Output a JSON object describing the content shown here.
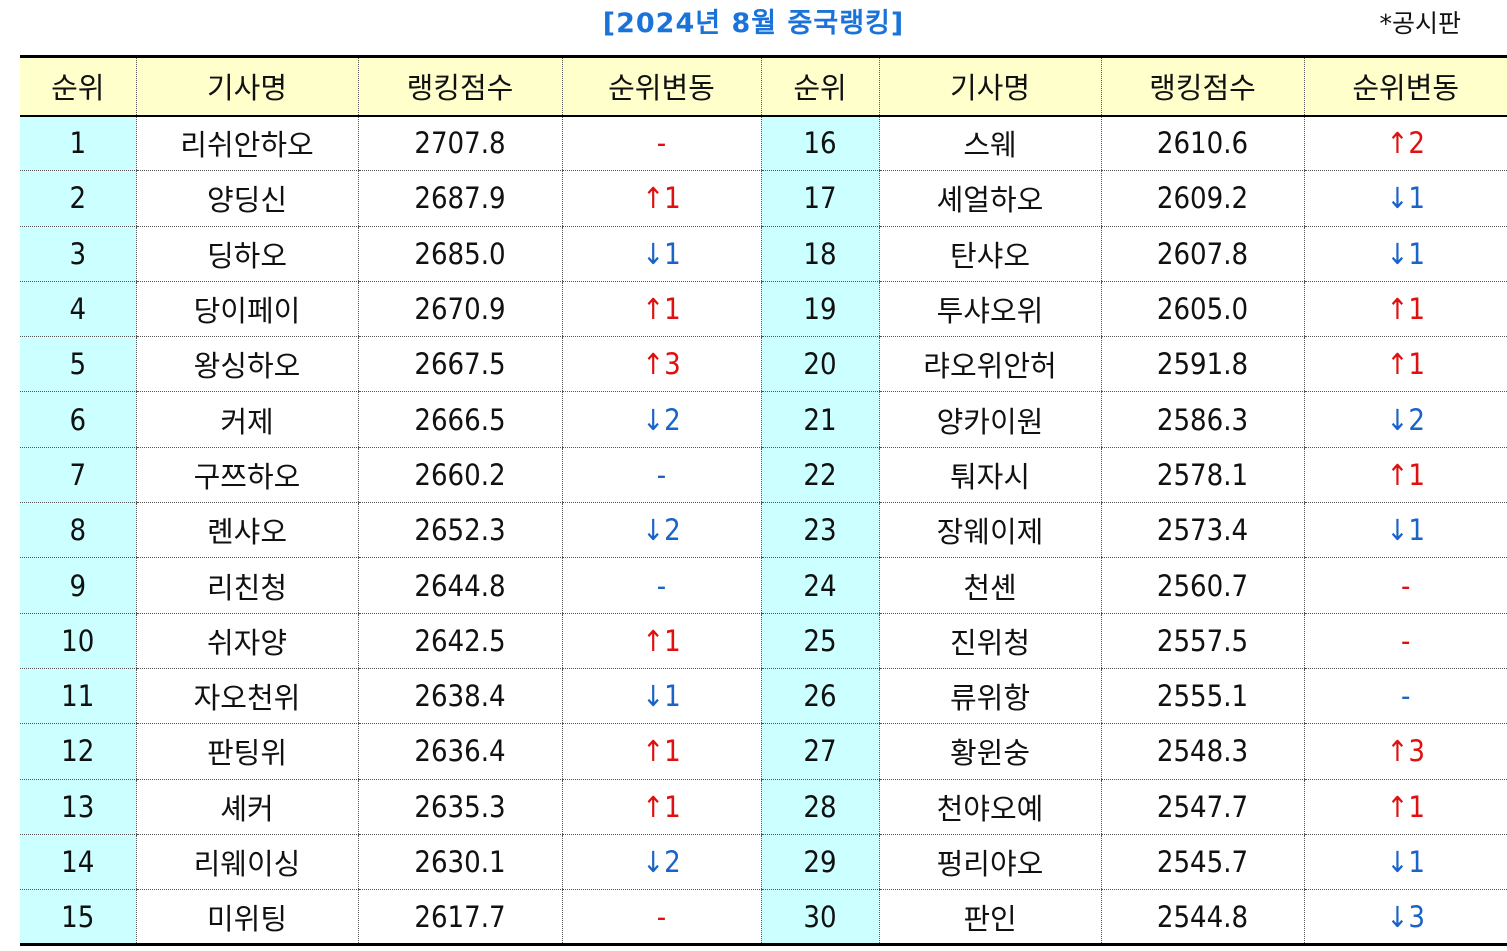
{
  "title": "[2024년 8월 중국랭킹]",
  "source": "*공시판",
  "headers": [
    "순위",
    "기사명",
    "랭킹점수",
    "순위변동",
    "순위",
    "기사명",
    "랭킹점수",
    "순위변동"
  ],
  "rows": [
    {
      "left": {
        "rank": "1",
        "name": "리쉬안하오",
        "score": "2707.8",
        "change": "-",
        "dir": "none-red"
      },
      "right": {
        "rank": "16",
        "name": "스웨",
        "score": "2610.6",
        "change": "↑2",
        "dir": "up"
      }
    },
    {
      "left": {
        "rank": "2",
        "name": "양딩신",
        "score": "2687.9",
        "change": "↑1",
        "dir": "up"
      },
      "right": {
        "rank": "17",
        "name": "셰얼하오",
        "score": "2609.2",
        "change": "↓1",
        "dir": "down"
      }
    },
    {
      "left": {
        "rank": "3",
        "name": "딩하오",
        "score": "2685.0",
        "change": "↓1",
        "dir": "down"
      },
      "right": {
        "rank": "18",
        "name": "탄샤오",
        "score": "2607.8",
        "change": "↓1",
        "dir": "down"
      }
    },
    {
      "left": {
        "rank": "4",
        "name": "당이페이",
        "score": "2670.9",
        "change": "↑1",
        "dir": "up"
      },
      "right": {
        "rank": "19",
        "name": "투샤오위",
        "score": "2605.0",
        "change": "↑1",
        "dir": "up"
      }
    },
    {
      "left": {
        "rank": "5",
        "name": "왕싱하오",
        "score": "2667.5",
        "change": "↑3",
        "dir": "up"
      },
      "right": {
        "rank": "20",
        "name": "랴오위안허",
        "score": "2591.8",
        "change": "↑1",
        "dir": "up"
      }
    },
    {
      "left": {
        "rank": "6",
        "name": "커제",
        "score": "2666.5",
        "change": "↓2",
        "dir": "down"
      },
      "right": {
        "rank": "21",
        "name": "양카이원",
        "score": "2586.3",
        "change": "↓2",
        "dir": "down"
      }
    },
    {
      "left": {
        "rank": "7",
        "name": "구쯔하오",
        "score": "2660.2",
        "change": "-",
        "dir": "none-blue"
      },
      "right": {
        "rank": "22",
        "name": "퉈자시",
        "score": "2578.1",
        "change": "↑1",
        "dir": "up"
      }
    },
    {
      "left": {
        "rank": "8",
        "name": "롄샤오",
        "score": "2652.3",
        "change": "↓2",
        "dir": "down"
      },
      "right": {
        "rank": "23",
        "name": "장웨이제",
        "score": "2573.4",
        "change": "↓1",
        "dir": "down"
      }
    },
    {
      "left": {
        "rank": "9",
        "name": "리친청",
        "score": "2644.8",
        "change": "-",
        "dir": "none-blue"
      },
      "right": {
        "rank": "24",
        "name": "천셴",
        "score": "2560.7",
        "change": "-",
        "dir": "none-red"
      }
    },
    {
      "left": {
        "rank": "10",
        "name": "쉬자양",
        "score": "2642.5",
        "change": "↑1",
        "dir": "up"
      },
      "right": {
        "rank": "25",
        "name": "진위청",
        "score": "2557.5",
        "change": "-",
        "dir": "none-red"
      }
    },
    {
      "left": {
        "rank": "11",
        "name": "자오천위",
        "score": "2638.4",
        "change": "↓1",
        "dir": "down"
      },
      "right": {
        "rank": "26",
        "name": "류위항",
        "score": "2555.1",
        "change": "-",
        "dir": "none-blue"
      }
    },
    {
      "left": {
        "rank": "12",
        "name": "판팅위",
        "score": "2636.4",
        "change": "↑1",
        "dir": "up"
      },
      "right": {
        "rank": "27",
        "name": "황윈숭",
        "score": "2548.3",
        "change": "↑3",
        "dir": "up"
      }
    },
    {
      "left": {
        "rank": "13",
        "name": "셰커",
        "score": "2635.3",
        "change": "↑1",
        "dir": "up"
      },
      "right": {
        "rank": "28",
        "name": "천야오예",
        "score": "2547.7",
        "change": "↑1",
        "dir": "up"
      }
    },
    {
      "left": {
        "rank": "14",
        "name": "리웨이싱",
        "score": "2630.1",
        "change": "↓2",
        "dir": "down"
      },
      "right": {
        "rank": "29",
        "name": "펑리야오",
        "score": "2545.7",
        "change": "↓1",
        "dir": "down"
      }
    },
    {
      "left": {
        "rank": "15",
        "name": "미위팅",
        "score": "2617.7",
        "change": "-",
        "dir": "none-red"
      },
      "right": {
        "rank": "30",
        "name": "판인",
        "score": "2544.8",
        "change": "↓3",
        "dir": "down"
      }
    }
  ],
  "colors": {
    "title": "#1a73d9",
    "header_bg": "#ffffcc",
    "rank_bg": "#ccffff",
    "up": "#e01010",
    "down": "#1a63c9"
  }
}
